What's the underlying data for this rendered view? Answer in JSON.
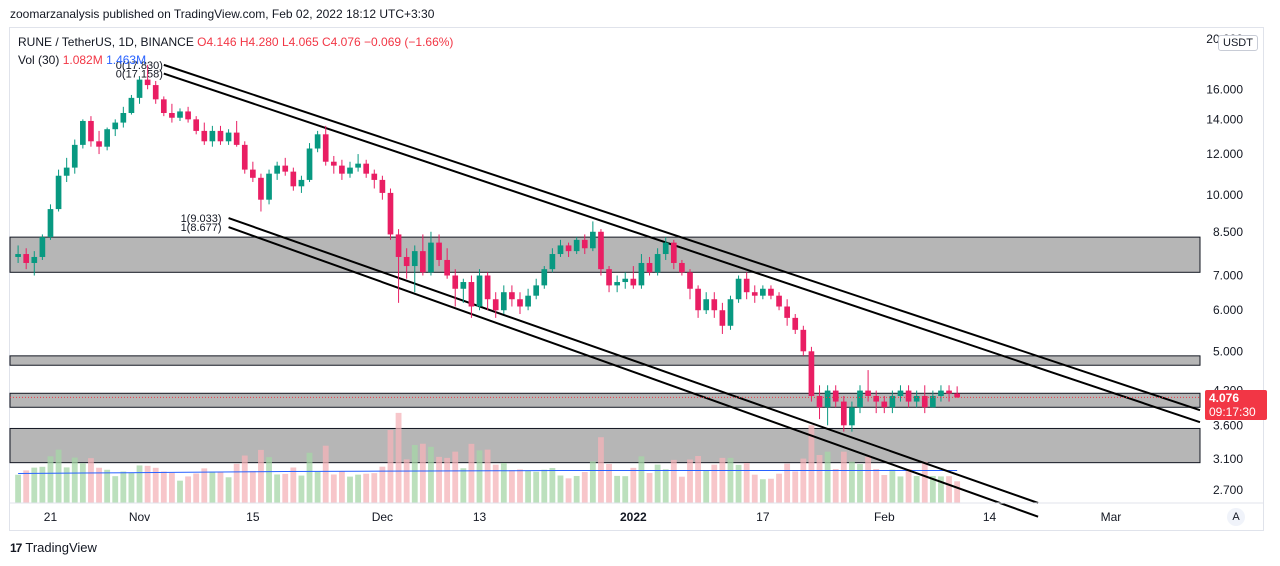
{
  "publisher_line": "zoomarzanalysis published on TradingView.com, Feb 02, 2022 18:12 UTC+3:30",
  "legend": {
    "symbol": "RUNE / TetherUS, 1D, BINANCE",
    "open": "O4.146",
    "high": "H4.280",
    "low": "L4.065",
    "close": "C4.076",
    "change": "−0.069 (−1.66%)",
    "vol_label": "Vol (30)",
    "vol_value": "1.082M",
    "vol_ma": "1.463M"
  },
  "currency_badge": "USDT",
  "last_price": {
    "price": "4.076",
    "countdown": "09:17:30"
  },
  "auto_button": "A",
  "footer_brand": "TradingView",
  "logo_mark": "17",
  "colors": {
    "up": "#26a69a",
    "down": "#ef5350",
    "up_body": "#089981",
    "down_body": "#e91e63",
    "zone": "#b2b2b2"
  },
  "chart_data": {
    "type": "candlestick",
    "symbol": "RUNE / TetherUS",
    "interval": "1D",
    "exchange": "BINANCE",
    "price_axis_labels": [
      "20.000",
      "16.000",
      "14.000",
      "12.000",
      "10.000",
      "8.500",
      "7.000",
      "6.000",
      "5.000",
      "4.200",
      "3.600",
      "3.100",
      "2.700"
    ],
    "price_axis_values": [
      20,
      16,
      14,
      12,
      10,
      8.5,
      7,
      6,
      5,
      4.2,
      3.6,
      3.1,
      2.7
    ],
    "time_axis_labels": [
      "21",
      "Nov",
      "15",
      "Dec",
      "13",
      "2022",
      "17",
      "Feb",
      "14",
      "Mar"
    ],
    "time_axis_dates": [
      "2021-10-21",
      "2021-11-01",
      "2021-11-15",
      "2021-12-01",
      "2021-12-13",
      "2022-01-01",
      "2022-01-17",
      "2022-02-01",
      "2022-02-14",
      "2022-03-01"
    ],
    "y_scale": "log",
    "ylim": [
      2.55,
      21
    ],
    "date_range": [
      "2021-10-16",
      "2022-03-12"
    ],
    "candles_start_date": "2021-10-17",
    "candles": [
      [
        7.6,
        8.0,
        7.4,
        7.7
      ],
      [
        7.7,
        7.9,
        7.2,
        7.4
      ],
      [
        7.4,
        7.8,
        7.0,
        7.6
      ],
      [
        7.6,
        8.4,
        7.5,
        8.3
      ],
      [
        8.3,
        9.6,
        8.2,
        9.4
      ],
      [
        9.4,
        11.2,
        9.3,
        10.9
      ],
      [
        10.9,
        11.8,
        10.6,
        11.3
      ],
      [
        11.3,
        12.8,
        11.0,
        12.5
      ],
      [
        12.5,
        14.0,
        12.3,
        13.9
      ],
      [
        13.9,
        14.2,
        12.4,
        12.7
      ],
      [
        12.7,
        13.3,
        12.0,
        12.4
      ],
      [
        12.4,
        13.5,
        12.2,
        13.4
      ],
      [
        13.4,
        14.0,
        13.0,
        13.8
      ],
      [
        13.8,
        14.8,
        13.5,
        14.4
      ],
      [
        14.4,
        15.6,
        14.3,
        15.4
      ],
      [
        15.4,
        16.9,
        15.0,
        16.7
      ],
      [
        16.7,
        17.83,
        16.0,
        16.3
      ],
      [
        16.3,
        16.6,
        15.0,
        15.3
      ],
      [
        15.3,
        15.5,
        14.2,
        14.4
      ],
      [
        14.4,
        15.0,
        13.8,
        14.1
      ],
      [
        14.1,
        14.7,
        13.9,
        14.5
      ],
      [
        14.5,
        14.8,
        13.8,
        14.0
      ],
      [
        14.0,
        14.2,
        13.1,
        13.3
      ],
      [
        13.3,
        13.8,
        12.5,
        12.7
      ],
      [
        12.7,
        13.6,
        12.4,
        13.3
      ],
      [
        13.3,
        13.6,
        12.5,
        12.7
      ],
      [
        12.7,
        13.4,
        12.5,
        13.2
      ],
      [
        13.2,
        13.9,
        12.4,
        12.5
      ],
      [
        12.5,
        12.7,
        11.0,
        11.2
      ],
      [
        11.2,
        11.6,
        10.6,
        10.8
      ],
      [
        10.8,
        11.0,
        9.3,
        9.8
      ],
      [
        9.8,
        11.2,
        9.6,
        11.0
      ],
      [
        11.0,
        11.6,
        10.7,
        11.4
      ],
      [
        11.4,
        11.8,
        10.9,
        11.1
      ],
      [
        11.1,
        11.3,
        10.2,
        10.4
      ],
      [
        10.4,
        10.9,
        10.1,
        10.7
      ],
      [
        10.7,
        12.6,
        10.6,
        12.3
      ],
      [
        12.3,
        13.3,
        12.1,
        13.1
      ],
      [
        13.1,
        13.6,
        11.4,
        11.6
      ],
      [
        11.6,
        11.9,
        11.0,
        11.4
      ],
      [
        11.4,
        11.7,
        10.7,
        11.0
      ],
      [
        11.0,
        11.6,
        10.8,
        11.3
      ],
      [
        11.3,
        12.0,
        11.1,
        11.5
      ],
      [
        11.5,
        11.7,
        10.8,
        11.0
      ],
      [
        11.0,
        11.2,
        10.3,
        10.7
      ],
      [
        10.7,
        10.9,
        9.8,
        10.1
      ],
      [
        10.1,
        10.3,
        8.2,
        8.4
      ],
      [
        8.4,
        8.6,
        6.2,
        7.6
      ],
      [
        7.6,
        7.9,
        6.9,
        7.3
      ],
      [
        7.3,
        8.0,
        6.5,
        7.8
      ],
      [
        7.8,
        8.4,
        7.0,
        7.1
      ],
      [
        7.1,
        8.5,
        7.0,
        8.1
      ],
      [
        8.1,
        8.4,
        7.3,
        7.5
      ],
      [
        7.5,
        7.9,
        6.9,
        7.0
      ],
      [
        7.0,
        7.2,
        6.1,
        6.6
      ],
      [
        6.6,
        6.9,
        6.2,
        6.8
      ],
      [
        6.8,
        7.0,
        5.8,
        6.1
      ],
      [
        6.1,
        7.2,
        6.0,
        7.0
      ],
      [
        7.0,
        7.1,
        6.0,
        6.3
      ],
      [
        6.3,
        6.5,
        5.8,
        6.0
      ],
      [
        6.0,
        6.7,
        5.9,
        6.5
      ],
      [
        6.5,
        6.7,
        6.1,
        6.3
      ],
      [
        6.3,
        6.5,
        5.9,
        6.1
      ],
      [
        6.1,
        6.6,
        6.0,
        6.4
      ],
      [
        6.4,
        6.9,
        6.3,
        6.7
      ],
      [
        6.7,
        7.3,
        6.6,
        7.2
      ],
      [
        7.2,
        7.9,
        7.1,
        7.7
      ],
      [
        7.7,
        8.2,
        7.6,
        8.0
      ],
      [
        8.0,
        8.1,
        7.6,
        7.8
      ],
      [
        7.8,
        8.3,
        7.7,
        8.2
      ],
      [
        8.2,
        8.4,
        7.7,
        7.9
      ],
      [
        7.9,
        8.9,
        7.8,
        8.5
      ],
      [
        8.5,
        8.6,
        7.0,
        7.2
      ],
      [
        7.2,
        7.3,
        6.5,
        6.7
      ],
      [
        6.7,
        7.0,
        6.5,
        6.8
      ],
      [
        6.8,
        7.1,
        6.6,
        6.9
      ],
      [
        6.9,
        7.3,
        6.6,
        6.7
      ],
      [
        6.7,
        7.7,
        6.6,
        7.4
      ],
      [
        7.4,
        7.6,
        7.0,
        7.1
      ],
      [
        7.1,
        7.9,
        7.0,
        7.7
      ],
      [
        7.7,
        8.3,
        7.5,
        8.1
      ],
      [
        8.1,
        8.2,
        7.2,
        7.4
      ],
      [
        7.4,
        7.5,
        7.0,
        7.1
      ],
      [
        7.1,
        7.2,
        6.3,
        6.6
      ],
      [
        6.6,
        6.7,
        5.8,
        6.0
      ],
      [
        6.0,
        6.5,
        5.9,
        6.3
      ],
      [
        6.3,
        6.5,
        5.8,
        6.0
      ],
      [
        6.0,
        6.2,
        5.4,
        5.6
      ],
      [
        5.6,
        6.4,
        5.5,
        6.3
      ],
      [
        6.3,
        7.0,
        6.2,
        6.9
      ],
      [
        6.9,
        7.1,
        6.3,
        6.5
      ],
      [
        6.5,
        6.7,
        6.2,
        6.4
      ],
      [
        6.4,
        6.7,
        6.3,
        6.6
      ],
      [
        6.6,
        6.7,
        6.3,
        6.4
      ],
      [
        6.4,
        6.5,
        6.0,
        6.1
      ],
      [
        6.1,
        6.3,
        5.6,
        5.8
      ],
      [
        5.8,
        5.9,
        5.4,
        5.5
      ],
      [
        5.5,
        5.6,
        4.9,
        5.0
      ],
      [
        5.0,
        5.1,
        4.0,
        4.1
      ],
      [
        4.1,
        4.3,
        3.7,
        3.9
      ],
      [
        3.9,
        4.3,
        3.6,
        4.2
      ],
      [
        4.2,
        4.3,
        3.9,
        4.0
      ],
      [
        4.0,
        4.1,
        3.5,
        3.6
      ],
      [
        3.6,
        4.0,
        3.5,
        3.9
      ],
      [
        3.9,
        4.3,
        3.8,
        4.2
      ],
      [
        4.2,
        4.6,
        4.0,
        4.1
      ],
      [
        4.1,
        4.2,
        3.8,
        4.0
      ],
      [
        4.0,
        4.1,
        3.8,
        3.9
      ],
      [
        3.9,
        4.2,
        3.8,
        4.1
      ],
      [
        4.1,
        4.3,
        4.0,
        4.2
      ],
      [
        4.2,
        4.3,
        3.9,
        4.0
      ],
      [
        4.0,
        4.2,
        3.9,
        4.1
      ],
      [
        4.1,
        4.3,
        3.8,
        3.9
      ],
      [
        3.9,
        4.2,
        3.9,
        4.1
      ],
      [
        4.1,
        4.3,
        4.0,
        4.2
      ],
      [
        4.2,
        4.3,
        4.0,
        4.146
      ],
      [
        4.146,
        4.28,
        4.065,
        4.076
      ]
    ],
    "volume_ma_approx": [
      0.9,
      1.0,
      1.1,
      1.2,
      1.3,
      1.35,
      1.4,
      1.45,
      1.5,
      1.5,
      1.5,
      1.5,
      1.5,
      1.5,
      1.5
    ],
    "zones": [
      {
        "low": 7.1,
        "high": 8.3
      },
      {
        "low": 4.7,
        "high": 4.9
      },
      {
        "low": 3.9,
        "high": 4.15
      },
      {
        "low": 3.05,
        "high": 3.55
      }
    ],
    "channel_lines": [
      {
        "label": "0(17.830)",
        "from": [
          "2021-11-04",
          17.83
        ],
        "to": [
          "2022-03-12",
          3.85
        ]
      },
      {
        "label": "0(17.158)",
        "from": [
          "2021-11-04",
          17.158
        ],
        "to": [
          "2022-03-12",
          3.65
        ]
      },
      {
        "label": "1(9.033)",
        "from": [
          "2021-11-12",
          9.033
        ],
        "to": [
          "2022-02-20",
          2.55
        ]
      },
      {
        "label": "1(8.677)",
        "from": [
          "2021-11-12",
          8.677
        ],
        "to": [
          "2022-02-20",
          2.4
        ]
      }
    ]
  }
}
